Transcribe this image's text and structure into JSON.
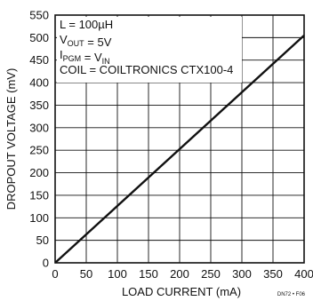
{
  "chart_data": {
    "type": "line",
    "xlabel": "LOAD CURRENT (mA)",
    "ylabel": "DROPOUT VOLTAGE (mV)",
    "xlim": [
      0,
      400
    ],
    "ylim": [
      0,
      550
    ],
    "x_ticks": [
      "0",
      "50",
      "100",
      "150",
      "200",
      "250",
      "300",
      "350",
      "400"
    ],
    "y_ticks": [
      "0",
      "50",
      "100",
      "150",
      "200",
      "250",
      "300",
      "350",
      "400",
      "450",
      "500",
      "550"
    ],
    "grid": true,
    "series": [
      {
        "x": [
          0,
          400
        ],
        "y": [
          0,
          505
        ]
      }
    ],
    "annotations": [
      {
        "parts": [
          {
            "text": "L = 100µH"
          }
        ]
      },
      {
        "parts": [
          {
            "text": "V"
          },
          {
            "text": "OUT",
            "sub": true
          },
          {
            "text": " = 5V"
          }
        ]
      },
      {
        "parts": [
          {
            "text": "I"
          },
          {
            "text": "PGM",
            "sub": true
          },
          {
            "text": " = V"
          },
          {
            "text": "IN",
            "sub": true
          }
        ]
      },
      {
        "parts": [
          {
            "text": "COIL = COILTRONICS CTX100-4"
          }
        ]
      }
    ],
    "code": "DN72 • F06",
    "colors": {
      "line": "#111111",
      "grid": "#111111",
      "background": "#ffffff"
    }
  }
}
